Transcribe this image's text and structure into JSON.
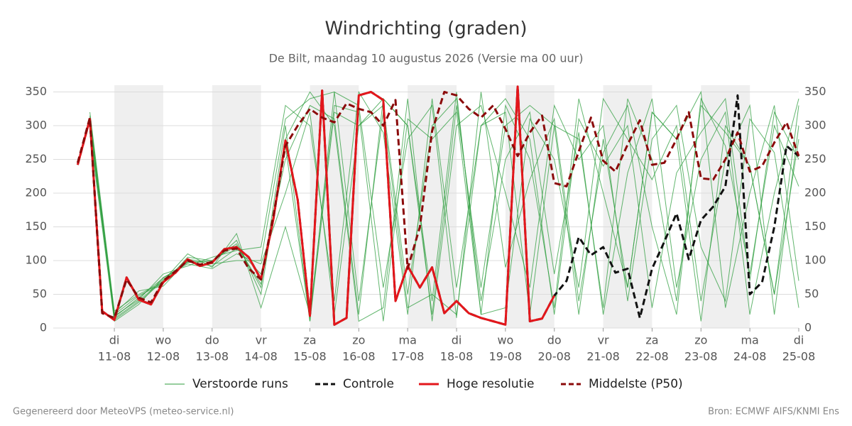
{
  "chart_data": {
    "type": "line",
    "title": "Windrichting (graden)",
    "subtitle": "De Bilt, maandag 10 augustus 2026 (Versie ma 00 uur)",
    "footer_left": "Gegenereerd door MeteoVPS (meteo-service.nl)",
    "footer_right": "Bron: ECMWF AIFS/KNMI Ens",
    "xlim": [
      9.75,
      25
    ],
    "ylim": [
      0,
      360
    ],
    "yticks": [
      0,
      50,
      100,
      150,
      200,
      250,
      300,
      350
    ],
    "grid": true,
    "legend": "bottom",
    "xticks": [
      {
        "value": 11,
        "label": [
          "di",
          "11-08"
        ]
      },
      {
        "value": 12,
        "label": [
          "wo",
          "12-08"
        ]
      },
      {
        "value": 13,
        "label": [
          "do",
          "13-08"
        ]
      },
      {
        "value": 14,
        "label": [
          "vr",
          "14-08"
        ]
      },
      {
        "value": 15,
        "label": [
          "za",
          "15-08"
        ]
      },
      {
        "value": 16,
        "label": [
          "zo",
          "16-08"
        ]
      },
      {
        "value": 17,
        "label": [
          "ma",
          "17-08"
        ]
      },
      {
        "value": 18,
        "label": [
          "di",
          "18-08"
        ]
      },
      {
        "value": 19,
        "label": [
          "wo",
          "19-08"
        ]
      },
      {
        "value": 20,
        "label": [
          "do",
          "20-08"
        ]
      },
      {
        "value": 21,
        "label": [
          "vr",
          "21-08"
        ]
      },
      {
        "value": 22,
        "label": [
          "za",
          "22-08"
        ]
      },
      {
        "value": 23,
        "label": [
          "zo",
          "23-08"
        ]
      },
      {
        "value": 24,
        "label": [
          "ma",
          "24-08"
        ]
      },
      {
        "value": 25,
        "label": [
          "di",
          "25-08"
        ]
      }
    ],
    "ensemble": {
      "name": "Verstoorde runs",
      "color": "#2e9e3e",
      "x": [
        10.5,
        11,
        11.5,
        12,
        12.5,
        13,
        13.5,
        14,
        14.5,
        15,
        15.5,
        16,
        16.5,
        17,
        17.5,
        18,
        18.5,
        19,
        19.5,
        20,
        20.5,
        21,
        21.5,
        22,
        22.5,
        23,
        23.5,
        24,
        24.5,
        25
      ],
      "members": [
        [
          300,
          14,
          40,
          72,
          98,
          92,
          118,
          80,
          250,
          330,
          310,
          20,
          340,
          300,
          40,
          350,
          20,
          330,
          250,
          30,
          340,
          200,
          60,
          320,
          280,
          10,
          300,
          240,
          50,
          330
        ],
        [
          315,
          20,
          48,
          66,
          105,
          100,
          125,
          60,
          300,
          10,
          350,
          330,
          60,
          280,
          330,
          15,
          350,
          90,
          220,
          310,
          40,
          260,
          330,
          150,
          20,
          340,
          270,
          80,
          300,
          210
        ],
        [
          290,
          10,
          35,
          75,
          95,
          88,
          110,
          95,
          200,
          320,
          20,
          300,
          330,
          50,
          300,
          340,
          40,
          250,
          320,
          80,
          290,
          20,
          230,
          340,
          60,
          250,
          320,
          20,
          200,
          340
        ],
        [
          320,
          25,
          50,
          68,
          102,
          97,
          130,
          50,
          280,
          350,
          300,
          10,
          30,
          340,
          10,
          300,
          330,
          200,
          60,
          330,
          250,
          300,
          40,
          280,
          330,
          120,
          40,
          310,
          260,
          30
        ],
        [
          305,
          18,
          42,
          80,
          92,
          105,
          115,
          120,
          330,
          300,
          40,
          350,
          290,
          20,
          340,
          60,
          300,
          340,
          280,
          20,
          310,
          240,
          300,
          30,
          230,
          290,
          340,
          70,
          320,
          250
        ],
        [
          310,
          12,
          38,
          70,
          110,
          90,
          140,
          30,
          150,
          20,
          330,
          320,
          10,
          310,
          280,
          320,
          20,
          30,
          310,
          250,
          60,
          340,
          280,
          220,
          300,
          40,
          250,
          330,
          20,
          300
        ],
        [
          295,
          22,
          55,
          62,
          100,
          95,
          100,
          100,
          310,
          340,
          350,
          40,
          320,
          30,
          50,
          20,
          300,
          320,
          20,
          300,
          280,
          30,
          340,
          250,
          40,
          330,
          290,
          240,
          50,
          280
        ],
        [
          312,
          16,
          45,
          74,
          97,
          100,
          122,
          65,
          270,
          10,
          320,
          300,
          340,
          300,
          20,
          330,
          60,
          300,
          330,
          300,
          20,
          280,
          60,
          320,
          280,
          350,
          30,
          200,
          330,
          70
        ]
      ]
    },
    "x": [
      10.25,
      10.5,
      10.75,
      11,
      11.25,
      11.5,
      11.75,
      12,
      12.25,
      12.5,
      12.75,
      13,
      13.25,
      13.5,
      13.75,
      14,
      14.25,
      14.5,
      14.75,
      15,
      15.25,
      15.5,
      15.75,
      16,
      16.25,
      16.5,
      16.75,
      17,
      17.25,
      17.5,
      17.75,
      18,
      18.25,
      18.5,
      18.75,
      19,
      19.25,
      19.5,
      19.75,
      20,
      20.25,
      20.5,
      20.75,
      21,
      21.25,
      21.5,
      21.75,
      22,
      22.25,
      22.5,
      22.75,
      23,
      23.25,
      23.5,
      23.75,
      24,
      24.25,
      24.5,
      24.75,
      25
    ],
    "series": [
      {
        "name": "Controle",
        "color": "#111111",
        "dash": true,
        "values": [
          242,
          310,
          25,
          12,
          75,
          42,
          35,
          68,
          82,
          102,
          92,
          97,
          117,
          120,
          105,
          72,
          160,
          278,
          190,
          18,
          352,
          5,
          15,
          345,
          350,
          338,
          40,
          92,
          60,
          90,
          22,
          40,
          22,
          15,
          10,
          5,
          358,
          10,
          14,
          48,
          70,
          135,
          108,
          120,
          82,
          88,
          15,
          88,
          128,
          170,
          102,
          160,
          180,
          210,
          345,
          50,
          68,
          150,
          270,
          255
        ]
      },
      {
        "name": "Hoge resolutie",
        "color": "#e3161b",
        "dash": false,
        "values": [
          242,
          310,
          25,
          12,
          75,
          42,
          35,
          68,
          82,
          102,
          92,
          97,
          117,
          120,
          105,
          72,
          160,
          278,
          190,
          18,
          352,
          5,
          15,
          345,
          350,
          338,
          40,
          92,
          60,
          90,
          22,
          40,
          22,
          15,
          10,
          5,
          358,
          10,
          14,
          48,
          null,
          null,
          null,
          null,
          null,
          null,
          null,
          null,
          null,
          null,
          null,
          null,
          null,
          null,
          null,
          null,
          null,
          null,
          null,
          null
        ]
      },
      {
        "name": "Middelste (P50)",
        "color": "#8b0a0a",
        "dash": true,
        "values": [
          245,
          312,
          22,
          15,
          72,
          45,
          38,
          70,
          84,
          100,
          94,
          98,
          115,
          118,
          88,
          72,
          165,
          270,
          300,
          325,
          312,
          305,
          333,
          325,
          320,
          300,
          338,
          88,
          150,
          292,
          350,
          345,
          325,
          312,
          330,
          295,
          255,
          290,
          315,
          215,
          210,
          262,
          312,
          248,
          232,
          272,
          308,
          242,
          245,
          280,
          320,
          222,
          220,
          250,
          290,
          232,
          240,
          275,
          305,
          255
        ]
      }
    ]
  }
}
